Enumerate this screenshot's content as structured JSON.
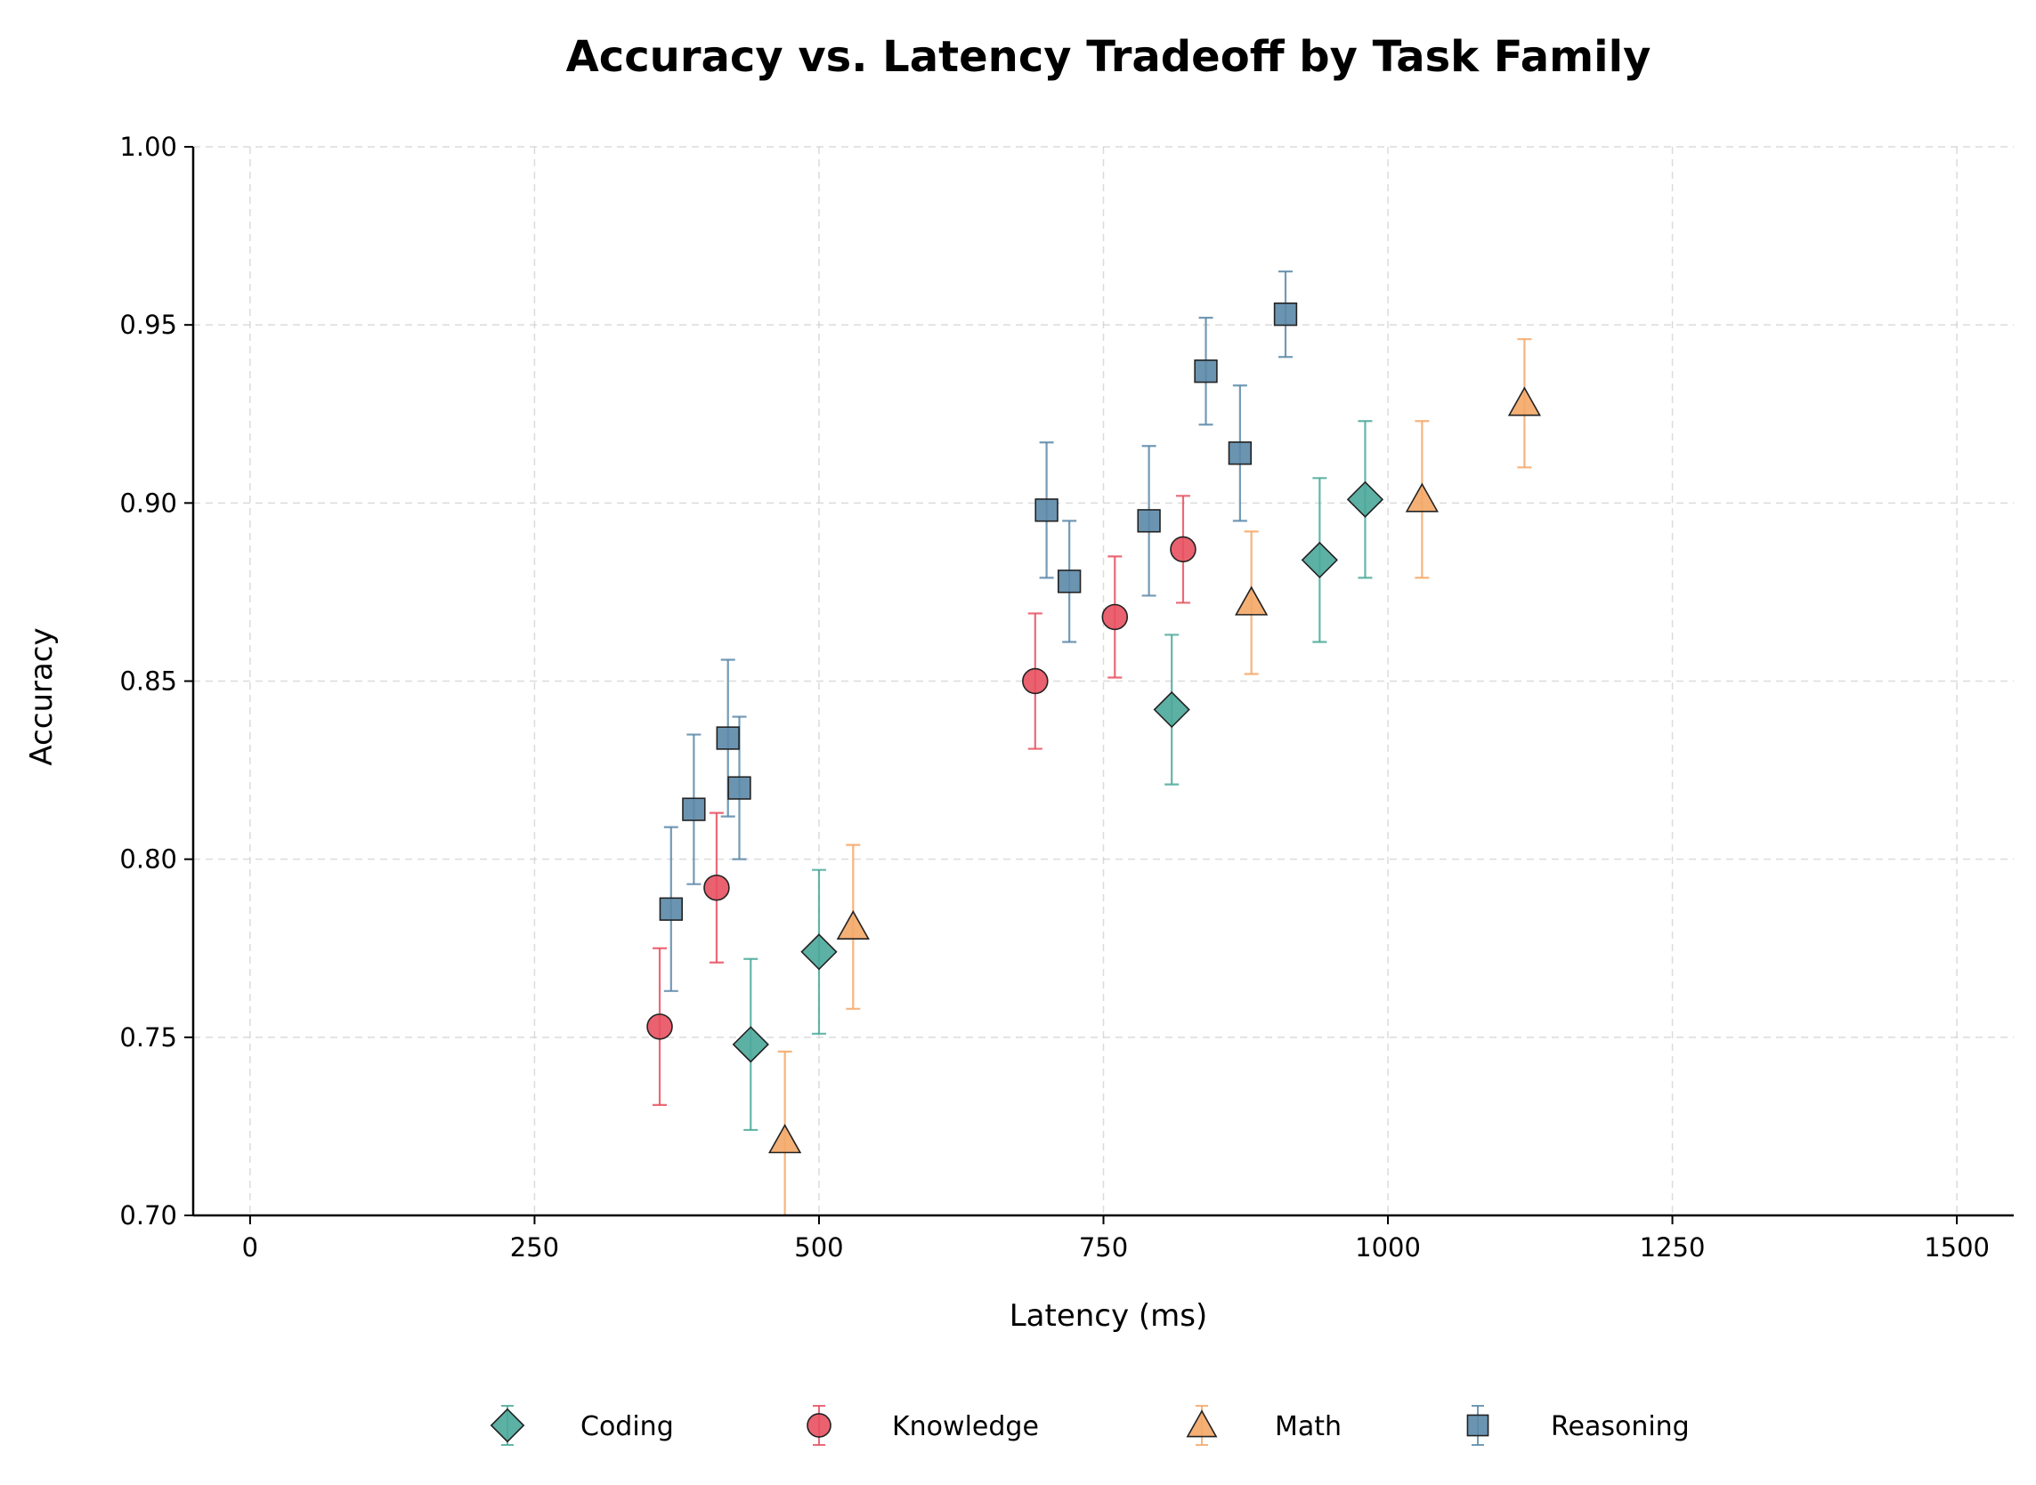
{
  "chart_data": {
    "type": "scatter",
    "title": "Accuracy vs. Latency Tradeoff by Task Family",
    "xlabel": "Latency (ms)",
    "ylabel": "Accuracy",
    "xlim": [
      -50,
      1550
    ],
    "ylim": [
      0.7,
      1.0
    ],
    "xticks": [
      0,
      250,
      500,
      750,
      1000,
      1250,
      1500
    ],
    "yticks": [
      0.7,
      0.75,
      0.8,
      0.85,
      0.9,
      0.95,
      1.0
    ],
    "xtick_labels": [
      "0",
      "250",
      "500",
      "750",
      "1000",
      "1250",
      "1500"
    ],
    "ytick_labels": [
      "0.70",
      "0.75",
      "0.80",
      "0.85",
      "0.90",
      "0.95",
      "1.00"
    ],
    "grid": true,
    "legend_position": "bottom-center",
    "series": [
      {
        "name": "Coding",
        "marker": "diamond",
        "color": "#4aa99a",
        "points": [
          {
            "x": 440,
            "y": 0.748,
            "err": 0.024
          },
          {
            "x": 500,
            "y": 0.774,
            "err": 0.023
          },
          {
            "x": 810,
            "y": 0.842,
            "err": 0.021
          },
          {
            "x": 940,
            "y": 0.884,
            "err": 0.023
          },
          {
            "x": 980,
            "y": 0.901,
            "err": 0.022
          }
        ]
      },
      {
        "name": "Knowledge",
        "marker": "circle",
        "color": "#e8505f",
        "points": [
          {
            "x": 360,
            "y": 0.753,
            "err": 0.022
          },
          {
            "x": 410,
            "y": 0.792,
            "err": 0.021
          },
          {
            "x": 690,
            "y": 0.85,
            "err": 0.019
          },
          {
            "x": 760,
            "y": 0.868,
            "err": 0.017
          },
          {
            "x": 820,
            "y": 0.887,
            "err": 0.015
          }
        ]
      },
      {
        "name": "Math",
        "marker": "triangle",
        "color": "#f4a767",
        "points": [
          {
            "x": 470,
            "y": 0.721,
            "err": 0.025
          },
          {
            "x": 530,
            "y": 0.781,
            "err": 0.023
          },
          {
            "x": 880,
            "y": 0.872,
            "err": 0.02
          },
          {
            "x": 1030,
            "y": 0.901,
            "err": 0.022
          },
          {
            "x": 1120,
            "y": 0.928,
            "err": 0.018
          }
        ]
      },
      {
        "name": "Reasoning",
        "marker": "square",
        "color": "#5b88a8",
        "points": [
          {
            "x": 370,
            "y": 0.786,
            "err": 0.023
          },
          {
            "x": 390,
            "y": 0.814,
            "err": 0.021
          },
          {
            "x": 420,
            "y": 0.834,
            "err": 0.022
          },
          {
            "x": 430,
            "y": 0.82,
            "err": 0.02
          },
          {
            "x": 700,
            "y": 0.898,
            "err": 0.019
          },
          {
            "x": 720,
            "y": 0.878,
            "err": 0.017
          },
          {
            "x": 790,
            "y": 0.895,
            "err": 0.021
          },
          {
            "x": 840,
            "y": 0.937,
            "err": 0.015
          },
          {
            "x": 870,
            "y": 0.914,
            "err": 0.019
          },
          {
            "x": 910,
            "y": 0.953,
            "err": 0.012
          }
        ]
      }
    ]
  }
}
